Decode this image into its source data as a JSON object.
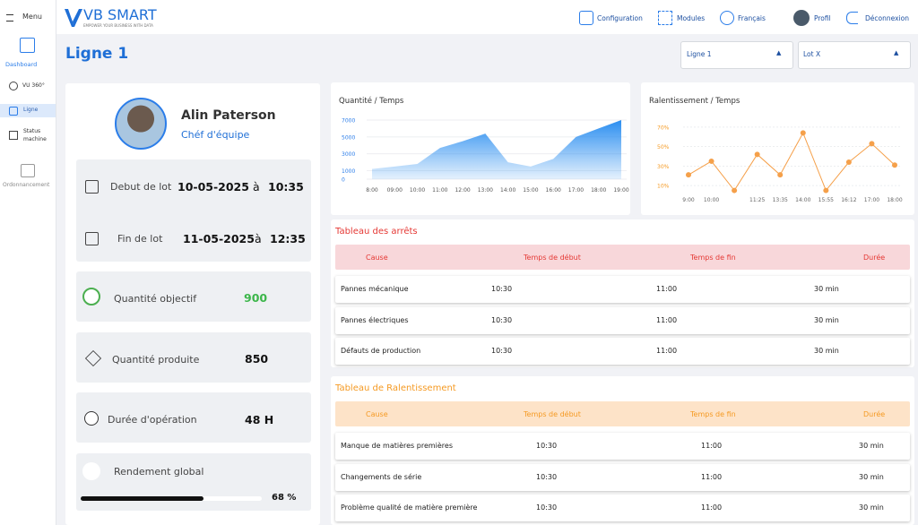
{
  "sidebar": {
    "menu": "Menu",
    "items": [
      "Dashboard",
      "VU 360°",
      "Ligne",
      "Status machine",
      "Ordonnancement"
    ]
  },
  "header": {
    "logo": "VB SMART",
    "tagline": "EMPOWER YOUR BUSINESS WITH DATA",
    "nav": [
      "Configuration",
      "Modules",
      "Français",
      "Profil",
      "Déconnexion"
    ]
  },
  "page": {
    "title": "Ligne 1",
    "selects": [
      "Ligne 1",
      "Lot X"
    ]
  },
  "profile": {
    "name": "Alin Paterson",
    "role": "Chéf d'équipe"
  },
  "lot": [
    {
      "label": "Debut de lot",
      "date": "10-05-2025",
      "sep": "à",
      "time": "10:35"
    },
    {
      "label": "Fin de lot",
      "date": "11-05-2025",
      "sep": "à",
      "time": "12:35"
    }
  ],
  "kpis": [
    {
      "label": "Quantité objectif",
      "value": "900"
    },
    {
      "label": "Quantité produite",
      "value": "850"
    },
    {
      "label": "Durée d'opération",
      "value": "48 H"
    }
  ],
  "rendement": {
    "label": "Rendement global",
    "value": 68,
    "value_label": "68 %"
  },
  "chart_data": [
    {
      "type": "area",
      "title": "Quantité / Temps",
      "categories": [
        "8:00",
        "09:00",
        "10:00",
        "11:00",
        "12:00",
        "13:00",
        "14:00",
        "15:00",
        "16:00",
        "17:00",
        "18:00",
        "19:00"
      ],
      "values": [
        1200,
        1500,
        1800,
        3700,
        4500,
        5400,
        2000,
        1500,
        2400,
        5000,
        6000,
        7000
      ],
      "color": "#2b8ef0",
      "ylim": [
        0,
        7000
      ],
      "yticks": [
        0,
        1000,
        3000,
        5000,
        7000
      ],
      "grid": true
    },
    {
      "type": "line",
      "title": "Ralentissement / Temps",
      "categories": [
        "9:00",
        "10:00",
        null,
        "11:25",
        "13:35",
        "14:00",
        "15:55",
        "16:12",
        "17:00",
        "18:00"
      ],
      "values": [
        21,
        35,
        5,
        42,
        21,
        64,
        5,
        34,
        53,
        31
      ],
      "color": "#f5a04a",
      "ylim": [
        0,
        80
      ],
      "yticks": [
        {
          "value": 10,
          "label": "10%"
        },
        {
          "value": 30,
          "label": "30%"
        },
        {
          "value": 50,
          "label": "50%"
        },
        {
          "value": 70,
          "label": "70%"
        }
      ],
      "grid": true
    }
  ],
  "tables": [
    {
      "title": "Tableau des arrêts",
      "columns": [
        "Cause",
        "Temps de début",
        "Temps de fin",
        "Durée"
      ],
      "rows": [
        [
          "Pannes mécanique",
          "10:30",
          "11:00",
          "30 min"
        ],
        [
          "Pannes électriques",
          "10:30",
          "11:00",
          "30 min"
        ],
        [
          "Défauts de production",
          "10:30",
          "11:00",
          "30 min"
        ]
      ]
    },
    {
      "title": "Tableau de Ralentissement",
      "columns": [
        "Cause",
        "Temps de début",
        "Temps de fin",
        "Durée"
      ],
      "rows": [
        [
          "Manque de matières premières",
          "10:30",
          "11:00",
          "30 min"
        ],
        [
          "Changements de série",
          "10:30",
          "11:00",
          "30 min"
        ],
        [
          "Problème qualité de matière première",
          "10:30",
          "11:00",
          "30 min"
        ]
      ]
    }
  ]
}
